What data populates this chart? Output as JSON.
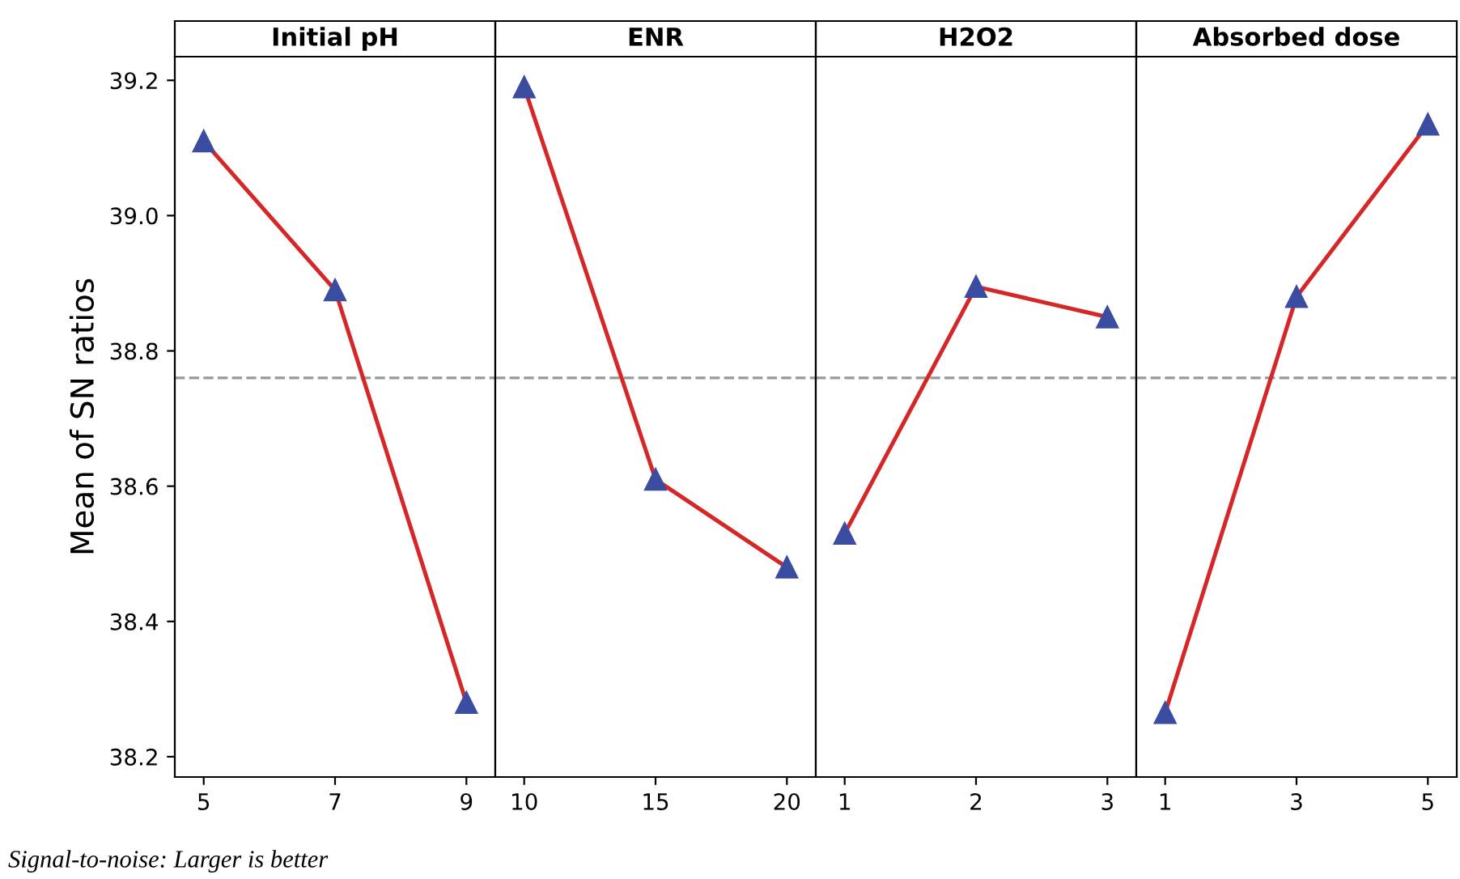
{
  "chart_data": [
    {
      "type": "line",
      "title": "Initial pH",
      "ylabel": "Mean of SN ratios",
      "categories": [
        "5",
        "7",
        "9"
      ],
      "series": [
        {
          "color": "#d62728",
          "values": [
            39.11,
            38.89,
            38.28
          ]
        }
      ],
      "ylim": [
        38.17,
        39.235
      ],
      "yticks": [
        38.2,
        38.4,
        38.6,
        38.8,
        {
          "value": 39,
          "label": "39.0"
        },
        39.2
      ],
      "marker": "triangle",
      "line_style": "solid",
      "grid": false,
      "ref_lines": [
        {
          "axis": "y",
          "value": 38.76,
          "color": "#999999",
          "line_style": "dashed"
        }
      ],
      "annotations": [
        "Signal-to-noise: Larger is better"
      ]
    },
    {
      "type": "line",
      "title": "ENR",
      "categories": [
        "10",
        "15",
        "20"
      ],
      "series": [
        {
          "color": "#d62728",
          "values": [
            39.19,
            38.61,
            38.48
          ]
        }
      ],
      "ylim": [
        38.17,
        39.235
      ],
      "tick_labels": "x",
      "marker": "triangle",
      "line_style": "solid",
      "grid": false,
      "ref_lines": [
        {
          "axis": "y",
          "value": 38.76,
          "color": "#999999",
          "line_style": "dashed"
        }
      ]
    },
    {
      "type": "line",
      "title": "H2O2",
      "categories": [
        "1",
        "2",
        "3"
      ],
      "series": [
        {
          "color": "#d62728",
          "values": [
            38.53,
            38.895,
            38.85
          ]
        }
      ],
      "ylim": [
        38.17,
        39.235
      ],
      "tick_labels": "x",
      "marker": "triangle",
      "line_style": "solid",
      "grid": false,
      "ref_lines": [
        {
          "axis": "y",
          "value": 38.76,
          "color": "#999999",
          "line_style": "dashed"
        }
      ]
    },
    {
      "type": "line",
      "title": "Absorbed dose",
      "categories": [
        "1",
        "3",
        "5"
      ],
      "series": [
        {
          "color": "#d62728",
          "values": [
            38.265,
            38.88,
            39.135
          ]
        }
      ],
      "ylim": [
        38.17,
        39.235
      ],
      "tick_labels": "x",
      "marker": "triangle",
      "line_style": "solid",
      "grid": false,
      "ref_lines": [
        {
          "axis": "y",
          "value": 38.76,
          "color": "#999999",
          "line_style": "dashed"
        }
      ]
    }
  ]
}
